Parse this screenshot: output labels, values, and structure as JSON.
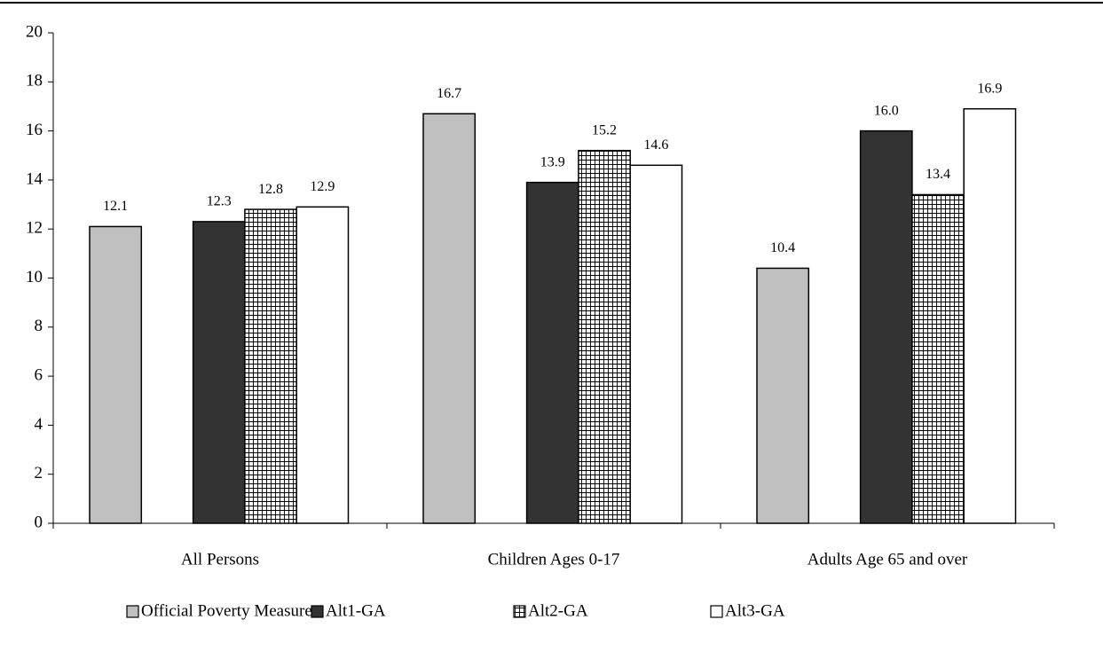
{
  "chart_data": {
    "type": "bar",
    "categories": [
      "All Persons",
      "Children Ages 0-17",
      "Adults Age 65 and over"
    ],
    "series": [
      {
        "name": "Official Poverty Measure",
        "color": "#c0c0c0",
        "values": [
          12.1,
          16.7,
          10.4
        ],
        "value_labels": [
          "12.1",
          "16.7",
          "10.4"
        ]
      },
      {
        "name": "Alt1-GA",
        "color": "#333333",
        "values": [
          12.3,
          13.9,
          16.0
        ],
        "value_labels": [
          "12.3",
          "13.9",
          "16.0"
        ]
      },
      {
        "name": "Alt2-GA",
        "color": "#ffffff",
        "pattern": "grid",
        "values": [
          12.8,
          15.2,
          13.4
        ],
        "value_labels": [
          "12.8",
          "15.2",
          "13.4"
        ]
      },
      {
        "name": "Alt3-GA",
        "color": "#ffffff",
        "values": [
          12.9,
          14.6,
          16.9
        ],
        "value_labels": [
          "12.9",
          "14.6",
          "16.9"
        ]
      }
    ],
    "ylim": [
      0,
      20
    ],
    "yticks": [
      0,
      2,
      4,
      6,
      8,
      10,
      12,
      14,
      16,
      18,
      20
    ],
    "grid": false,
    "legend": "bottom"
  }
}
